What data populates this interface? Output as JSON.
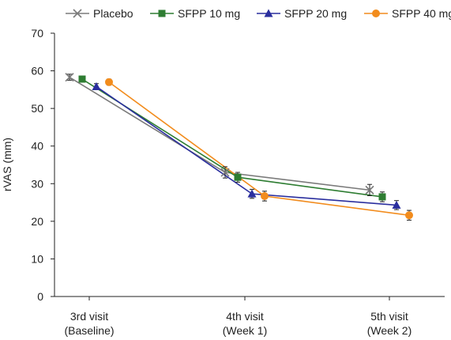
{
  "chart_data": {
    "type": "line",
    "title": "",
    "xlabel": "",
    "ylabel": "rVAS (mm)",
    "ylim": [
      0,
      70
    ],
    "yticks": [
      0,
      10,
      20,
      30,
      40,
      50,
      60,
      70
    ],
    "grid": false,
    "legend_position": "top",
    "categories": [
      [
        "3rd visit",
        "(Baseline)"
      ],
      [
        "4th visit",
        "(Week 1)"
      ],
      [
        "5th visit",
        "(Week 2)"
      ]
    ],
    "series": [
      {
        "name": "Placebo",
        "marker": "x",
        "color": "#7a7a7a",
        "values": [
          58.3,
          33.0,
          28.3
        ],
        "error": [
          0.8,
          1.5,
          1.5
        ]
      },
      {
        "name": "SFPP 10 mg",
        "marker": "square",
        "color": "#2e7d32",
        "values": [
          57.8,
          31.7,
          26.5
        ],
        "error": [
          0.8,
          1.3,
          1.3
        ]
      },
      {
        "name": "SFPP 20 mg",
        "marker": "triangle",
        "color": "#2a2e9e",
        "values": [
          55.8,
          27.3,
          24.3
        ],
        "error": [
          0.8,
          1.2,
          1.2
        ]
      },
      {
        "name": "SFPP 40 mg",
        "marker": "circle",
        "color": "#f28c1d",
        "values": [
          57.0,
          26.7,
          21.6
        ],
        "error": [
          0.8,
          1.3,
          1.3
        ]
      }
    ]
  }
}
